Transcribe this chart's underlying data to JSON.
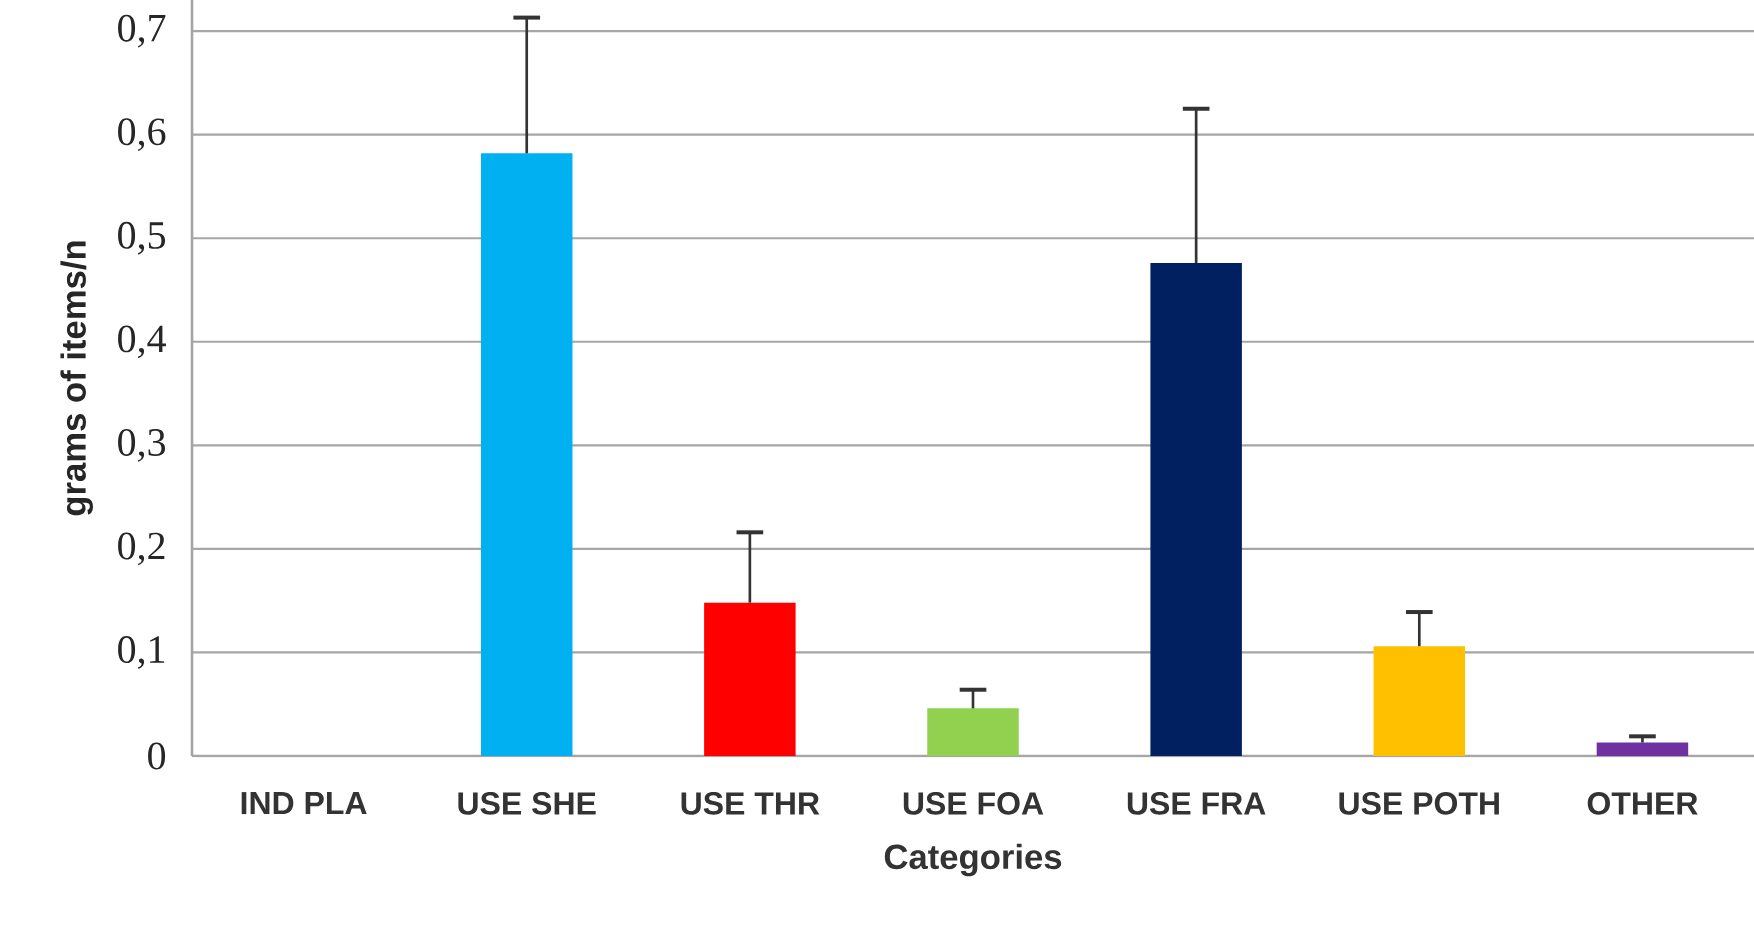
{
  "chart_data": {
    "type": "bar",
    "xlabel": "Categories",
    "ylabel": "grams of items/n",
    "categories": [
      "IND PLA",
      "USE SHE",
      "USE THR",
      "USE FOA",
      "USE FRA",
      "USE POTH",
      "OTHER"
    ],
    "values": [
      0,
      0.582,
      0.148,
      0.046,
      0.476,
      0.106,
      0.013
    ],
    "colors": [
      "#00b0f0",
      "#00b0f0",
      "#ff0000",
      "#92d050",
      "#002060",
      "#ffc000",
      "#7030a0"
    ],
    "errors": [
      null,
      [
        0.582,
        0.713
      ],
      [
        0.148,
        0.216
      ],
      [
        0.046,
        0.064
      ],
      [
        0.476,
        0.625
      ],
      [
        0.106,
        0.139
      ],
      [
        0.013,
        0.019
      ]
    ],
    "ylim": [
      0,
      0.73
    ],
    "yticks": [
      0,
      {
        "value": 0.1,
        "label": "0,1"
      },
      {
        "value": 0.2,
        "label": "0,2"
      },
      {
        "value": 0.3,
        "label": "0,3"
      },
      {
        "value": 0.4,
        "label": "0,4"
      },
      {
        "value": 0.5,
        "label": "0,5"
      },
      {
        "value": 0.6,
        "label": "0,6"
      },
      {
        "value": 0.7,
        "label": "0,7"
      }
    ],
    "grid": "y"
  }
}
